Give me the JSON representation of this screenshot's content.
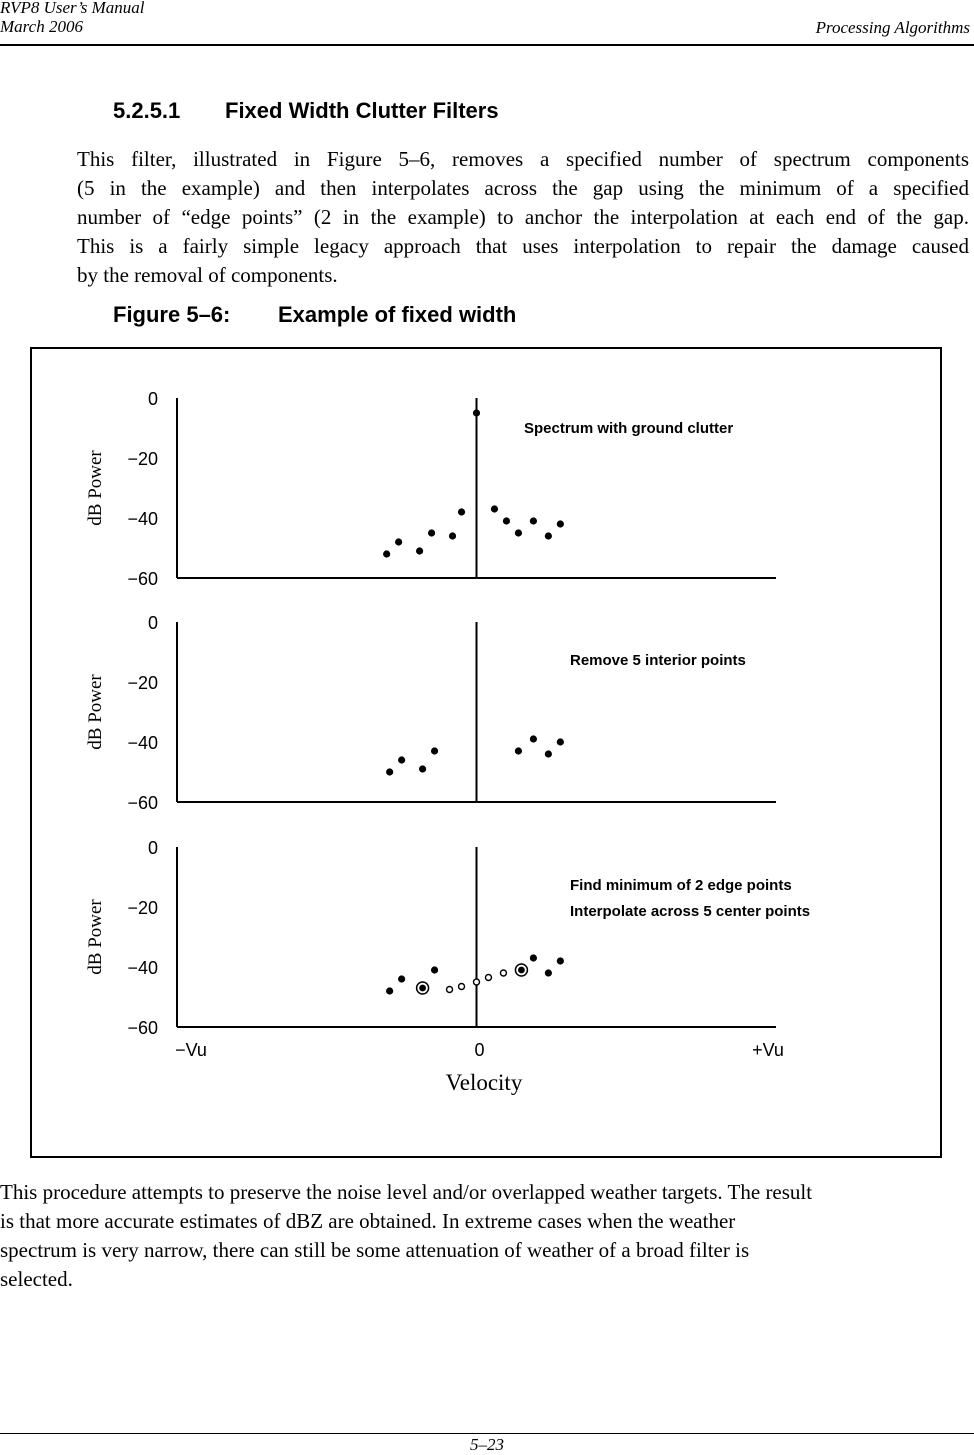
{
  "header": {
    "manual": "RVP8 User’s Manual",
    "date": "March 2006",
    "chapter": "Processing Algorithms"
  },
  "section": {
    "number": "5.2.5.1",
    "title": "Fixed Width Clutter Filters"
  },
  "intro_lines": [
    "This filter, illustrated in Figure 5–6, removes  a specified number of spectrum components",
    "(5 in the example) and then interpolates across the gap using the minimum of a specified",
    "number of “edge points” (2 in the example) to anchor the interpolation at each end of the gap.",
    "This is a fairly simple legacy approach that uses interpolation to repair the damage caused",
    "by the removal of components."
  ],
  "figure": {
    "number": "Figure 5–6:",
    "title": "Example of fixed width"
  },
  "chart_data": [
    {
      "type": "scatter",
      "annotation": "Spectrum with ground clutter",
      "ylabel": "dB Power",
      "yticks": [
        "0",
        "−20",
        "−40",
        "−60"
      ],
      "ylim": [
        -60,
        0
      ],
      "xlim": [
        -1,
        1
      ],
      "points": [
        [
          -0.3,
          -52
        ],
        [
          -0.26,
          -48
        ],
        [
          -0.19,
          -51
        ],
        [
          -0.15,
          -45
        ],
        [
          -0.08,
          -46
        ],
        [
          -0.05,
          -38
        ],
        [
          0,
          -5
        ],
        [
          0.06,
          -37
        ],
        [
          0.1,
          -41
        ],
        [
          0.14,
          -45
        ],
        [
          0.19,
          -41
        ],
        [
          0.24,
          -46
        ],
        [
          0.28,
          -42
        ]
      ]
    },
    {
      "type": "scatter",
      "annotation": "Remove 5 interior points",
      "ylabel": "dB Power",
      "yticks": [
        "0",
        "−20",
        "−40",
        "−60"
      ],
      "ylim": [
        -60,
        0
      ],
      "xlim": [
        -1,
        1
      ],
      "points": [
        [
          -0.29,
          -50
        ],
        [
          -0.25,
          -46
        ],
        [
          -0.18,
          -49
        ],
        [
          -0.14,
          -43
        ],
        [
          0.14,
          -43
        ],
        [
          0.19,
          -39
        ],
        [
          0.24,
          -44
        ],
        [
          0.28,
          -40
        ]
      ]
    },
    {
      "type": "scatter",
      "annotation": [
        "Find minimum of 2 edge points",
        "Interpolate across 5 center points"
      ],
      "ylabel": "dB Power",
      "yticks": [
        "0",
        "−20",
        "−40",
        "−60"
      ],
      "ylim": [
        -60,
        0
      ],
      "xlim": [
        -1,
        1
      ],
      "xticks": [
        "−Vu",
        "0",
        "+Vu"
      ],
      "xlabel": "Velocity",
      "points": [
        [
          -0.29,
          -48
        ],
        [
          -0.25,
          -44
        ],
        [
          -0.14,
          -41
        ],
        [
          0.19,
          -37
        ],
        [
          0.24,
          -42
        ],
        [
          0.28,
          -38
        ]
      ],
      "edge_points": [
        [
          -0.18,
          -47
        ],
        [
          0.15,
          -41
        ]
      ],
      "interpolated_points": [
        [
          -0.09,
          -47.5
        ],
        [
          -0.05,
          -46.5
        ],
        [
          0,
          -45
        ],
        [
          0.04,
          -43.5
        ],
        [
          0.09,
          -42
        ]
      ]
    }
  ],
  "closing_lines": [
    "This procedure attempts to preserve the noise level and/or overlapped weather targets. The result",
    "is that more accurate estimates of dBZ are obtained. In extreme cases when the weather",
    "spectrum is very narrow, there can still be some attenuation of weather of a broad filter is",
    "selected."
  ],
  "page_number": "5–23"
}
